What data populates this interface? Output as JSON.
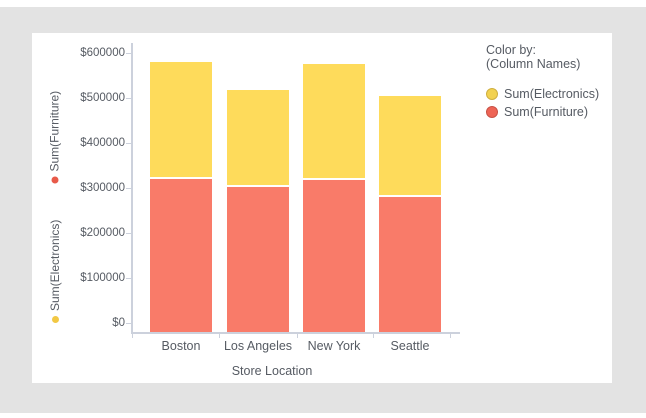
{
  "page": {
    "background_color": "#e3e3e3",
    "card_color": "#ffffff"
  },
  "left_axis": {
    "items": [
      {
        "label": "Sum(Furniture)",
        "dot_color": "#e85a49"
      },
      {
        "label": "Sum(Electronics)",
        "dot_color": "#f2c844"
      }
    ]
  },
  "legend": {
    "title": "Color by:",
    "subtitle": "(Column Names)",
    "items": [
      {
        "label": "Sum(Electronics)",
        "color": "#f2d150",
        "border": "#cfaf40"
      },
      {
        "label": "Sum(Furniture)",
        "color": "#ee6455",
        "border": "#c85246"
      }
    ]
  },
  "chart_data": {
    "type": "bar",
    "stacked": true,
    "categories": [
      "Boston",
      "Los Angeles",
      "New York",
      "Seattle"
    ],
    "series": [
      {
        "name": "Sum(Furniture)",
        "color": "#f97b69",
        "values": [
          320000,
          302000,
          318000,
          281000
        ]
      },
      {
        "name": "Sum(Electronics)",
        "color": "#fedb5b",
        "values": [
          260000,
          215000,
          258000,
          224000
        ]
      }
    ],
    "xlabel": "Store Location",
    "y_tick_values": [
      0,
      100000,
      200000,
      300000,
      400000,
      500000,
      600000
    ],
    "y_tick_labels": [
      "$0",
      "$100000",
      "$200000",
      "$300000",
      "$400000",
      "$500000",
      "$600000"
    ],
    "ylim": [
      0,
      600000
    ],
    "grid": false,
    "legend_position": "right",
    "axis_line_color": "#ccd1dc",
    "text_color": "#565b63"
  }
}
